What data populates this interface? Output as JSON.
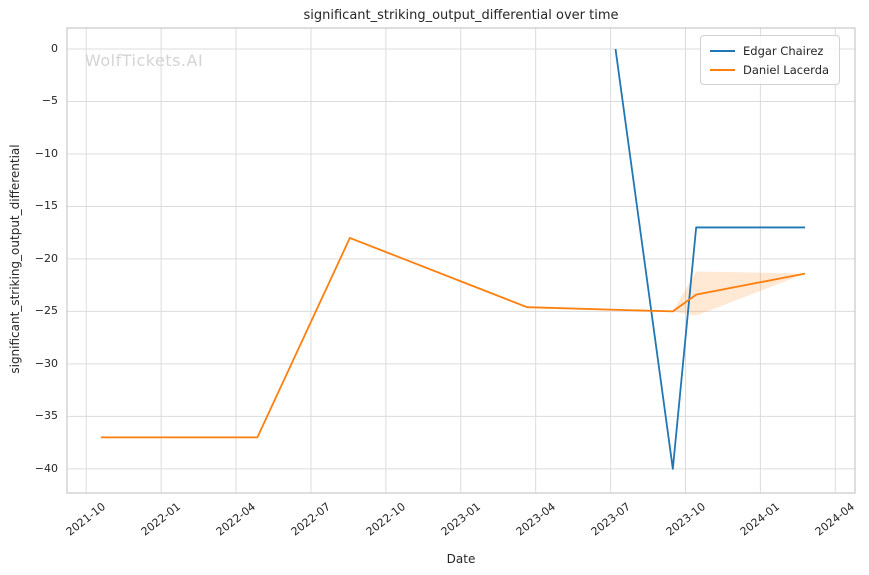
{
  "title": "significant_striking_output_differential over time",
  "watermark": "WolfTickets.AI",
  "colors": {
    "edgar": "#1f77b4",
    "daniel": "#ff7f0e",
    "band": "rgba(255,127,14,0.18)",
    "grid": "#dcdcdc",
    "spine": "#c9c9c9",
    "text": "#262626"
  },
  "legend": [
    {
      "label": "Edgar Chairez",
      "color": "#1f77b4"
    },
    {
      "label": "Daniel Lacerda",
      "color": "#ff7f0e"
    }
  ],
  "chart_data": {
    "type": "line",
    "title": "significant_striking_output_differential over time",
    "xlabel": "Date",
    "ylabel": "significant_striking_output_differential",
    "x_ticks": [
      "2021-10",
      "2022-01",
      "2022-04",
      "2022-07",
      "2022-10",
      "2023-01",
      "2023-04",
      "2023-07",
      "2023-10",
      "2024-01",
      "2024-04"
    ],
    "y_ticks": [
      0,
      -5,
      -10,
      -15,
      -20,
      -25,
      -30,
      -35,
      -40
    ],
    "xlim": [
      "2021-09-08",
      "2024-04-25"
    ],
    "ylim": [
      -42.3,
      2.0
    ],
    "grid": true,
    "legend_position": "upper right",
    "series": [
      {
        "name": "Edgar Chairez",
        "color": "#1f77b4",
        "points": [
          [
            "2023-07-07",
            0
          ],
          [
            "2023-09-16",
            -40
          ],
          [
            "2023-10-14",
            -17
          ],
          [
            "2024-02-25",
            -17
          ]
        ]
      },
      {
        "name": "Daniel Lacerda",
        "color": "#ff7f0e",
        "points": [
          [
            "2021-10-19",
            -37
          ],
          [
            "2022-04-27",
            -37
          ],
          [
            "2022-08-18",
            -18
          ],
          [
            "2023-03-21",
            -24.6
          ],
          [
            "2023-09-16",
            -25
          ],
          [
            "2023-10-14",
            -23.4
          ],
          [
            "2024-02-25",
            -21.4
          ]
        ]
      }
    ],
    "bands": [
      {
        "series": "Daniel Lacerda",
        "color": "rgba(255,127,14,0.18)",
        "upper": [
          [
            "2023-09-16",
            -25
          ],
          [
            "2023-10-14",
            -21.2
          ],
          [
            "2024-02-25",
            -21.4
          ]
        ],
        "lower": [
          [
            "2023-09-16",
            -25
          ],
          [
            "2023-10-14",
            -25.4
          ],
          [
            "2024-02-25",
            -21.4
          ]
        ]
      }
    ]
  }
}
